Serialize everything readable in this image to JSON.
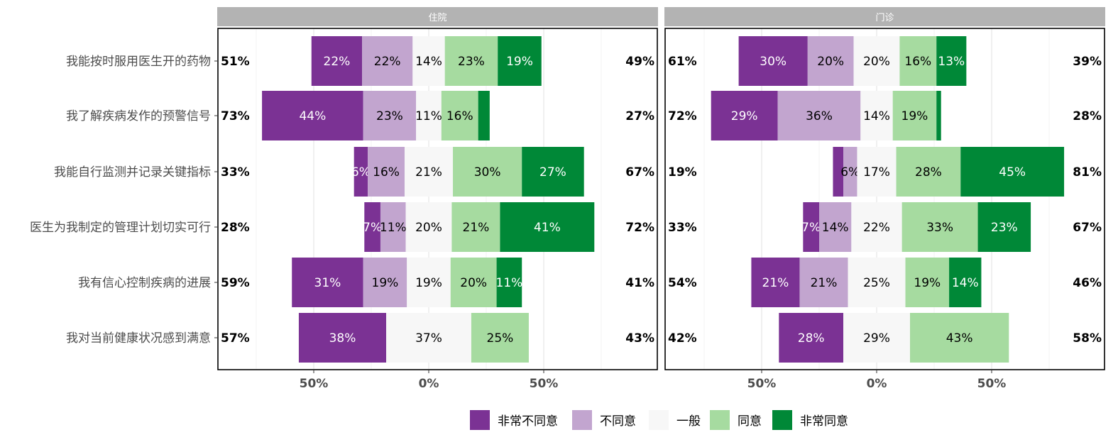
{
  "chart_data": {
    "type": "bar",
    "orientation": "horizontal-diverging-stacked",
    "levels": [
      "非常不同意",
      "不同意",
      "一般",
      "同意",
      "非常同意"
    ],
    "colors": [
      "#7b3294",
      "#c2a5cf",
      "#f7f7f7",
      "#a6dba0",
      "#008837"
    ],
    "light_text_levels": [
      0,
      4
    ],
    "categories": [
      "我能按时服用医生开的药物",
      "我了解疾病发作的预警信号",
      "我能自行监测并记录关键指标",
      "医生为我制定的管理计划切实可行",
      "我有信心控制疾病的进展",
      "我对当前健康状况感到满意"
    ],
    "x_ticks": [
      -0.5,
      0,
      0.5
    ],
    "x_tick_labels": [
      "50%",
      "0%",
      "50%"
    ],
    "xlim": [
      -0.92,
      1.0
    ],
    "legend_position": "bottom",
    "panels": [
      {
        "title": "住院",
        "rows": [
          {
            "values": [
              22,
              22,
              14,
              23,
              19
            ],
            "labels": [
              "22%",
              "22%",
              "14%",
              "23%",
              "19%"
            ],
            "left_total": "51%",
            "right_total": "49%"
          },
          {
            "values": [
              44,
              23,
              11,
              16,
              5
            ],
            "labels": [
              "44%",
              "23%",
              "11%",
              "16%",
              ""
            ],
            "left_total": "73%",
            "right_total": "27%"
          },
          {
            "values": [
              6,
              16,
              21,
              30,
              27
            ],
            "labels": [
              "6%",
              "16%",
              "21%",
              "30%",
              "27%"
            ],
            "left_total": "33%",
            "right_total": "67%"
          },
          {
            "values": [
              7,
              11,
              20,
              21,
              41
            ],
            "labels": [
              "7%",
              "11%",
              "20%",
              "21%",
              "41%"
            ],
            "left_total": "28%",
            "right_total": "72%"
          },
          {
            "values": [
              31,
              19,
              19,
              20,
              11
            ],
            "labels": [
              "31%",
              "19%",
              "19%",
              "20%",
              "11%"
            ],
            "left_total": "59%",
            "right_total": "41%"
          },
          {
            "values": [
              38,
              0,
              37,
              25,
              0
            ],
            "labels": [
              "38%",
              "",
              "37%",
              "25%",
              ""
            ],
            "left_total": "57%",
            "right_total": "43%"
          }
        ]
      },
      {
        "title": "门诊",
        "rows": [
          {
            "values": [
              30,
              20,
              20,
              16,
              13
            ],
            "labels": [
              "30%",
              "20%",
              "20%",
              "16%",
              "13%"
            ],
            "left_total": "61%",
            "right_total": "39%"
          },
          {
            "values": [
              29,
              36,
              14,
              19,
              2
            ],
            "labels": [
              "29%",
              "36%",
              "14%",
              "19%",
              ""
            ],
            "left_total": "72%",
            "right_total": "28%"
          },
          {
            "values": [
              4.5,
              6,
              17,
              28,
              45
            ],
            "labels": [
              "",
              "6%",
              "17%",
              "28%",
              "45%"
            ],
            "left_total": "19%",
            "right_total": "81%"
          },
          {
            "values": [
              7,
              14,
              22,
              33,
              23
            ],
            "labels": [
              "7%",
              "14%",
              "22%",
              "33%",
              "23%"
            ],
            "left_total": "33%",
            "right_total": "67%"
          },
          {
            "values": [
              21,
              21,
              25,
              19,
              14
            ],
            "labels": [
              "21%",
              "21%",
              "25%",
              "19%",
              "14%"
            ],
            "left_total": "54%",
            "right_total": "46%"
          },
          {
            "values": [
              28,
              0,
              29,
              43,
              0
            ],
            "labels": [
              "28%",
              "",
              "29%",
              "43%",
              ""
            ],
            "left_total": "42%",
            "right_total": "58%"
          }
        ]
      }
    ]
  }
}
